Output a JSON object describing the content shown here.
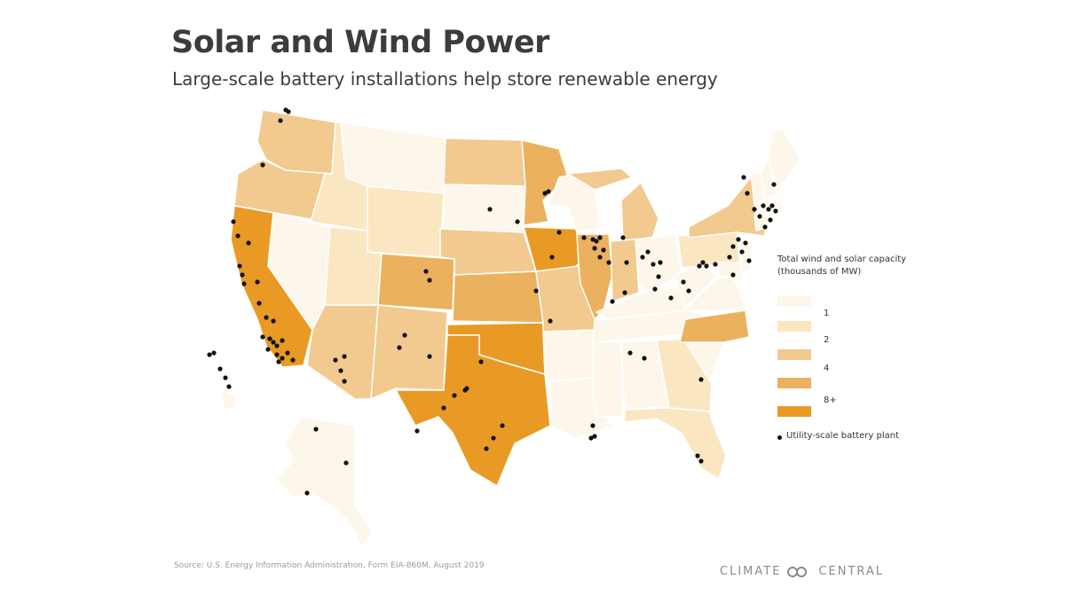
{
  "header": {
    "title": "Solar and Wind Power",
    "subtitle": "Large-scale battery installations help store renewable energy"
  },
  "legend": {
    "title_line1": "Total wind and solar capacity",
    "title_line2": "(thousands of MW)",
    "bins": [
      {
        "label": "1",
        "color": "#fdf6ea"
      },
      {
        "label": "2",
        "color": "#fbe6c2"
      },
      {
        "label": "4",
        "color": "#f2c98e"
      },
      {
        "label": "",
        "color": "#ebb15e"
      },
      {
        "label": "8+",
        "color": "#e89a24"
      }
    ],
    "bin_levels_shown": [
      "1",
      "2",
      "4",
      "8+"
    ],
    "point_label": "Utility-scale battery plant"
  },
  "colors": {
    "level_1": "#fdf6ea",
    "level_2": "#fbe6c2",
    "level_3": "#f2c98e",
    "level_4": "#ebb15e",
    "level_5": "#e89a24",
    "state_border": "#ffffff",
    "battery_dot": "#111111"
  },
  "footer": {
    "source": "Source: U.S. Energy Information Administration, Form EIA-860M, August 2019",
    "brand_left": "CLIMATE",
    "brand_right": "CENTRAL"
  }
}
